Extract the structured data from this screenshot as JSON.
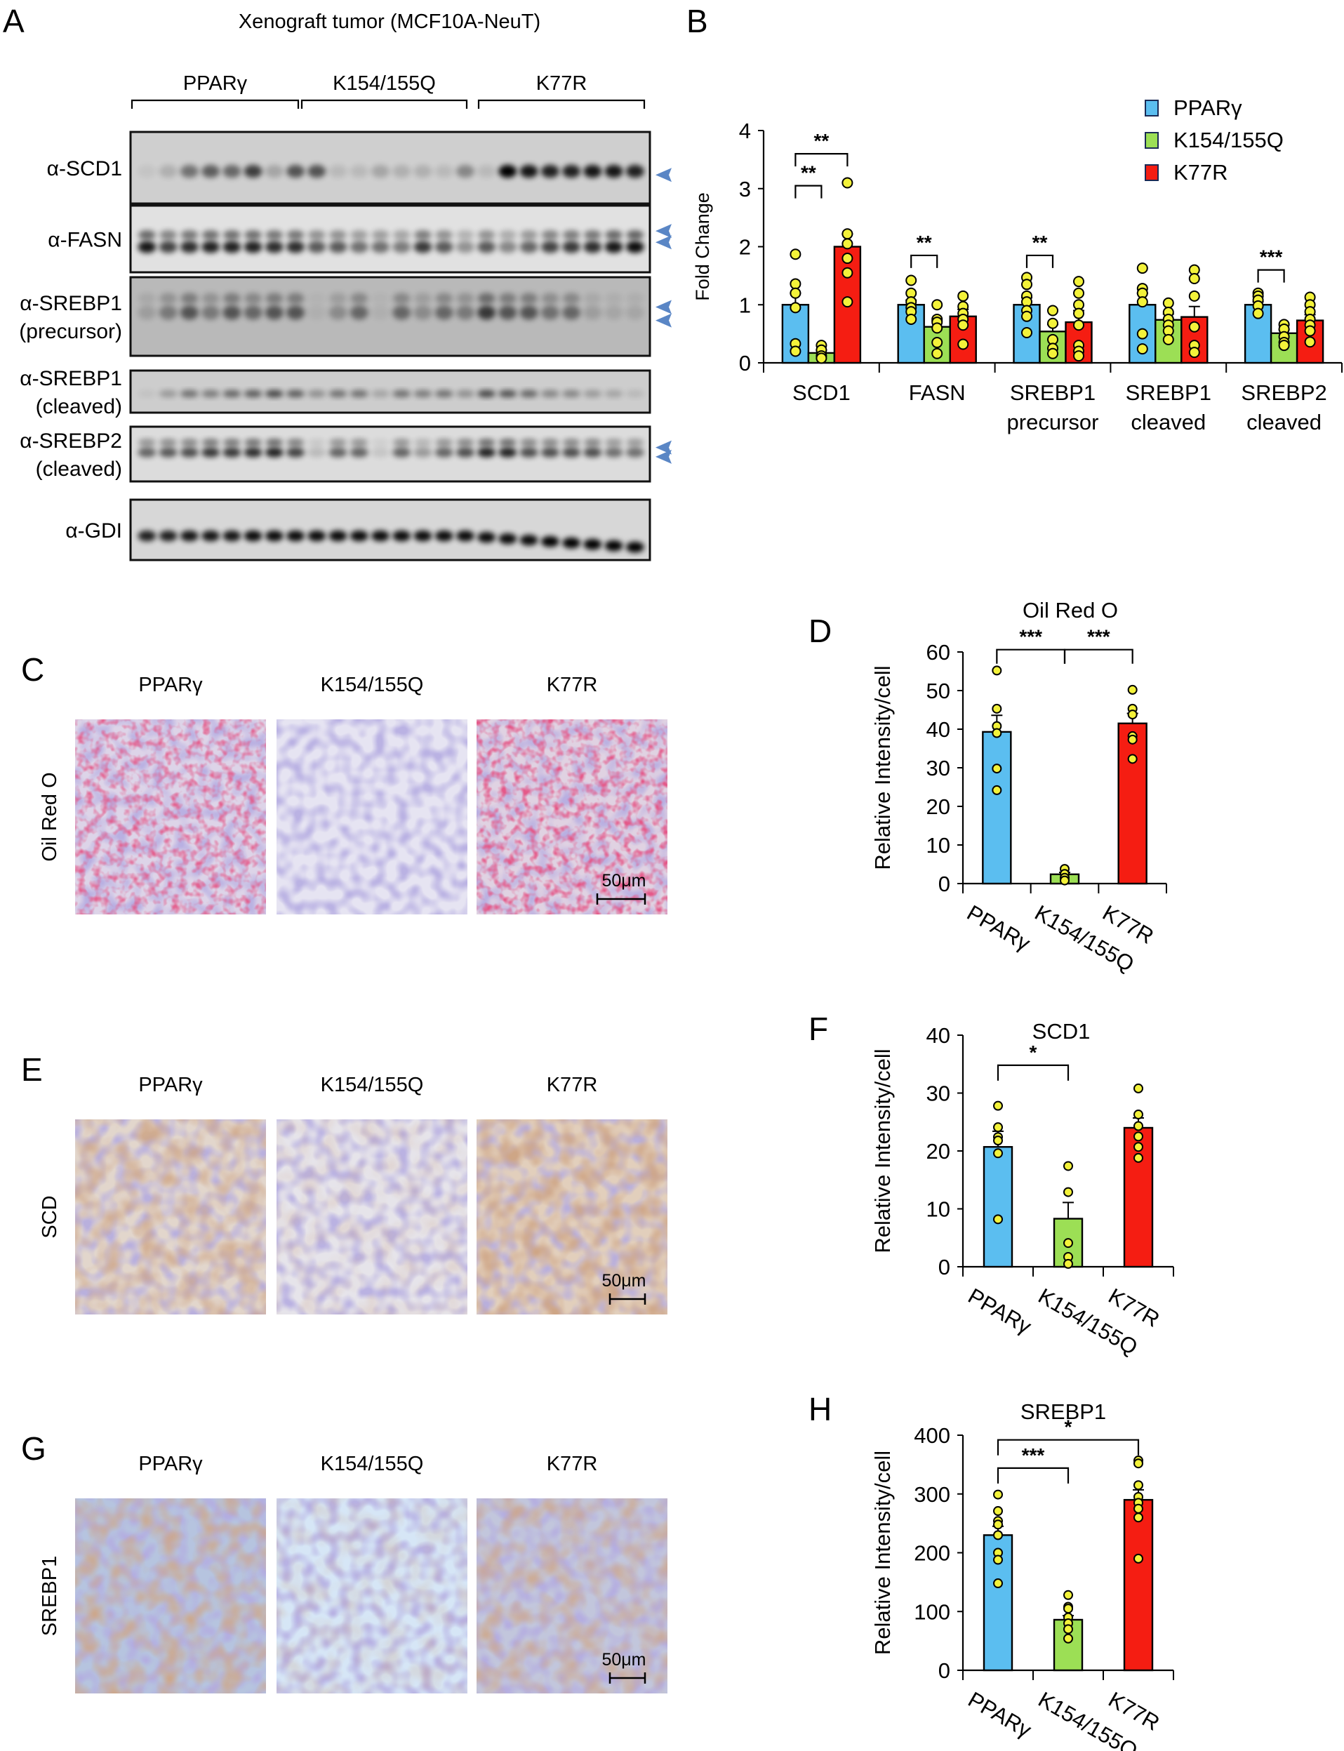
{
  "colors": {
    "ppar": "#5BBEF0",
    "k154": "#9CDF55",
    "k77r": "#F51D12",
    "dot": "#F3F23A",
    "arrow": "#5A86C5"
  },
  "groups": [
    "PPARγ",
    "K154/155Q",
    "K77R"
  ],
  "panel_a": {
    "letter": "A",
    "title": "Xenograft tumor (MCF10A-NeuT)",
    "group_labels": [
      "PPARγ",
      "K154/155Q",
      "K77R"
    ],
    "blots": [
      {
        "label": [
          "α-SCD1"
        ],
        "arrows": 1
      },
      {
        "label": [
          "α-FASN"
        ],
        "arrows": 2
      },
      {
        "label": [
          "α-SREBP1",
          "(precursor)"
        ],
        "arrows": 2
      },
      {
        "label": [
          "α-SREBP1",
          "(cleaved)"
        ],
        "arrows": 0
      },
      {
        "label": [
          "α-SREBP2",
          "(cleaved)"
        ],
        "arrows": 2
      },
      {
        "label": [
          "α-GDI"
        ],
        "arrows": 0
      }
    ]
  },
  "panel_c": {
    "letter": "C",
    "row_label": "Oil Red O",
    "col_labels": [
      "PPARγ",
      "K154/155Q",
      "K77R"
    ],
    "scale_bar": "50μm"
  },
  "panel_e": {
    "letter": "E",
    "row_label": "SCD",
    "col_labels": [
      "PPARγ",
      "K154/155Q",
      "K77R"
    ],
    "scale_bar": "50μm"
  },
  "panel_g": {
    "letter": "G",
    "row_label": "SREBP1",
    "col_labels": [
      "PPARγ",
      "K154/155Q",
      "K77R"
    ],
    "scale_bar": "50μm"
  },
  "chart_data": [
    {
      "panel": "B",
      "type": "bar",
      "title": "",
      "xlabel": "",
      "ylabel": "Fold Change",
      "ylim": [
        0,
        4
      ],
      "yticks": [
        0,
        1,
        2,
        3,
        4
      ],
      "grid": false,
      "legend_position": "top-right",
      "categories": [
        "SCD1",
        "FASN",
        "SREBP1 precursor",
        "SREBP1 cleaved",
        "SREBP2 cleaved"
      ],
      "category_lines": [
        [
          "SCD1"
        ],
        [
          "FASN"
        ],
        [
          "SREBP1",
          "precursor"
        ],
        [
          "SREBP1",
          "cleaved"
        ],
        [
          "SREBP2",
          "cleaved"
        ]
      ],
      "series": [
        {
          "name": "PPARγ",
          "values": [
            1.0,
            1.0,
            1.0,
            1.0,
            1.0
          ],
          "sem": [
            0.2,
            0.08,
            0.12,
            0.2,
            0.05
          ],
          "points": [
            [
              1.87,
              1.36,
              1.2,
              0.95,
              0.33,
              0.2
            ],
            [
              1.42,
              1.2,
              1.05,
              0.95,
              0.88,
              0.75
            ],
            [
              1.47,
              1.35,
              1.15,
              1.05,
              0.9,
              0.8,
              0.52
            ],
            [
              1.63,
              1.28,
              1.2,
              1.05,
              0.5,
              0.24
            ],
            [
              1.2,
              1.15,
              1.08,
              0.98,
              0.85
            ]
          ]
        },
        {
          "name": "K154/155Q",
          "values": [
            0.17,
            0.62,
            0.54,
            0.74,
            0.51
          ],
          "sem": [
            0.05,
            0.1,
            0.12,
            0.1,
            0.06
          ],
          "points": [
            [
              0.3,
              0.22,
              0.12,
              0.08
            ],
            [
              1.0,
              0.75,
              0.7,
              0.6,
              0.35,
              0.16
            ],
            [
              0.9,
              0.68,
              0.4,
              0.25,
              0.16
            ],
            [
              1.03,
              0.87,
              0.75,
              0.65,
              0.55,
              0.4
            ],
            [
              0.66,
              0.58,
              0.45,
              0.35,
              0.3
            ]
          ]
        },
        {
          "name": "K77R",
          "values": [
            2.0,
            0.8,
            0.7,
            0.79,
            0.73
          ],
          "sem": [
            0.22,
            0.12,
            0.2,
            0.18,
            0.1
          ],
          "points": [
            [
              3.1,
              2.22,
              2.05,
              1.8,
              1.55,
              1.05
            ],
            [
              1.15,
              0.97,
              0.85,
              0.75,
              0.65,
              0.32
            ],
            [
              1.4,
              1.2,
              1.0,
              0.85,
              0.65,
              0.3,
              0.2,
              0.12
            ],
            [
              1.6,
              1.45,
              1.15,
              0.62,
              0.3,
              0.18
            ],
            [
              1.13,
              1.0,
              0.88,
              0.75,
              0.65,
              0.55,
              0.36
            ]
          ]
        }
      ],
      "significance": [
        {
          "category": 0,
          "from": 0,
          "to": 2,
          "y": 3.6,
          "label": "**"
        },
        {
          "category": 0,
          "from": 0,
          "to": 1,
          "y": 3.05,
          "label": "**"
        },
        {
          "category": 1,
          "from": 0,
          "to": 1,
          "y": 1.85,
          "label": "**"
        },
        {
          "category": 2,
          "from": 0,
          "to": 1,
          "y": 1.85,
          "label": "**"
        },
        {
          "category": 4,
          "from": 0,
          "to": 1,
          "y": 1.6,
          "label": "***"
        }
      ]
    },
    {
      "panel": "D",
      "type": "bar",
      "title": "Oil Red O",
      "xlabel": "",
      "ylabel": "Relative Intensity/cell",
      "ylim": [
        0,
        60
      ],
      "yticks": [
        0,
        10,
        20,
        30,
        40,
        50,
        60
      ],
      "grid": false,
      "categories": [
        "PPARγ",
        "K154/155Q",
        "K77R"
      ],
      "values": [
        39.3,
        2.4,
        41.5
      ],
      "sem": [
        4.3,
        0.5,
        2.6
      ],
      "points": [
        [
          55.2,
          45.3,
          40.8,
          39.0,
          29.8,
          24.2
        ],
        [
          3.8,
          2.5,
          1.5,
          0.8
        ],
        [
          50.2,
          45.3,
          43.8,
          38.2,
          37.3,
          32.3
        ]
      ],
      "significance": [
        {
          "from": 0,
          "to": 1,
          "y": 60.6,
          "label": "***"
        },
        {
          "from": 1,
          "to": 2,
          "y": 60.6,
          "label": "***"
        }
      ]
    },
    {
      "panel": "F",
      "type": "bar",
      "title": "SCD1",
      "xlabel": "",
      "ylabel": "Relative Intensity/cell",
      "ylim": [
        0,
        40
      ],
      "yticks": [
        0,
        10,
        20,
        30,
        40
      ],
      "grid": false,
      "categories": [
        "PPARγ",
        "K154/155Q",
        "K77R"
      ],
      "values": [
        20.7,
        8.3,
        24.0
      ],
      "sem": [
        2.7,
        2.8,
        1.7
      ],
      "points": [
        [
          27.8,
          24.1,
          22.4,
          21.8,
          19.6,
          8.2
        ],
        [
          17.4,
          12.9,
          4.1,
          1.7,
          0.5
        ],
        [
          30.8,
          26.3,
          24.3,
          22.5,
          20.7,
          18.8
        ]
      ],
      "significance": [
        {
          "from": 0,
          "to": 1,
          "y": 34.8,
          "label": "*"
        }
      ]
    },
    {
      "panel": "H",
      "type": "bar",
      "title": "SREBP1",
      "xlabel": "",
      "ylabel": "Relative Intensity/cell",
      "ylim": [
        0,
        400
      ],
      "yticks": [
        0,
        100,
        200,
        300,
        400
      ],
      "grid": false,
      "categories": [
        "PPARγ",
        "K154/155Q",
        "K77R"
      ],
      "values": [
        230,
        86,
        290
      ],
      "sem": [
        15,
        7,
        17
      ],
      "points": [
        [
          299,
          271,
          254,
          248,
          230,
          200,
          188,
          148
        ],
        [
          128,
          108,
          105,
          90,
          80,
          70,
          54
        ],
        [
          357,
          352,
          315,
          295,
          285,
          275,
          260,
          190
        ]
      ],
      "significance": [
        {
          "from": 0,
          "to": 2,
          "y": 392,
          "label": "*"
        },
        {
          "from": 0,
          "to": 1,
          "y": 344,
          "label": "***"
        }
      ]
    }
  ]
}
